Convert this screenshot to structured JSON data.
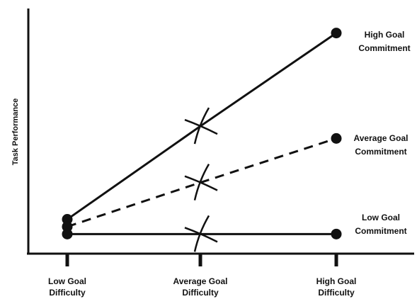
{
  "chart_data": {
    "type": "line",
    "ylabel": "Task Performance",
    "xlabel": "",
    "categories": [
      {
        "line1": "Low Goal",
        "line2": "Difficulty"
      },
      {
        "line1": "Average Goal",
        "line2": "Difficulty"
      },
      {
        "line1": "High Goal",
        "line2": "Difficulty"
      }
    ],
    "ylim": [
      0,
      100
    ],
    "series": [
      {
        "key": "high",
        "line1": "High Goal",
        "line2": "Commitment",
        "style": "solid",
        "values": [
          14,
          52,
          90
        ]
      },
      {
        "key": "average",
        "line1": "Average Goal",
        "line2": "Commitment",
        "style": "dashed",
        "values": [
          11,
          29,
          47
        ]
      },
      {
        "key": "low",
        "line1": "Low Goal",
        "line2": "Commitment",
        "style": "solid",
        "values": [
          8,
          8,
          8
        ]
      }
    ],
    "crossing_marker": "x-mark",
    "grid": false,
    "legend": "right-end labels",
    "color": "#111111"
  }
}
